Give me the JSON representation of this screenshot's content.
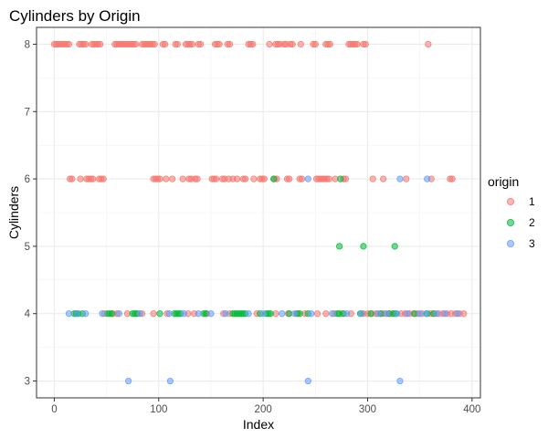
{
  "chart_data": {
    "type": "scatter",
    "title": "Cylinders by Origin",
    "xlabel": "Index",
    "ylabel": "Cylinders",
    "xlim": [
      -17,
      408
    ],
    "ylim": [
      2.75,
      8.25
    ],
    "x_ticks": [
      0,
      100,
      200,
      300,
      400
    ],
    "y_ticks": [
      3,
      4,
      5,
      6,
      7,
      8
    ],
    "grid": true,
    "legend": {
      "title": "origin",
      "placement": "right"
    },
    "series": [
      {
        "name": "1",
        "color": "#F8766D",
        "points": [
          [
            0,
            8
          ],
          [
            2,
            8
          ],
          [
            4,
            8
          ],
          [
            6,
            8
          ],
          [
            8,
            8
          ],
          [
            10,
            8
          ],
          [
            12,
            8
          ],
          [
            14,
            8
          ],
          [
            24,
            8
          ],
          [
            26,
            8
          ],
          [
            28,
            8
          ],
          [
            30,
            8
          ],
          [
            36,
            8
          ],
          [
            38,
            8
          ],
          [
            40,
            8
          ],
          [
            42,
            8
          ],
          [
            44,
            8
          ],
          [
            58,
            8
          ],
          [
            60,
            8
          ],
          [
            62,
            8
          ],
          [
            64,
            8
          ],
          [
            66,
            8
          ],
          [
            68,
            8
          ],
          [
            70,
            8
          ],
          [
            72,
            8
          ],
          [
            74,
            8
          ],
          [
            76,
            8
          ],
          [
            78,
            8
          ],
          [
            84,
            8
          ],
          [
            86,
            8
          ],
          [
            88,
            8
          ],
          [
            90,
            8
          ],
          [
            92,
            8
          ],
          [
            94,
            8
          ],
          [
            96,
            8
          ],
          [
            104,
            8
          ],
          [
            106,
            8
          ],
          [
            116,
            8
          ],
          [
            118,
            8
          ],
          [
            126,
            8
          ],
          [
            128,
            8
          ],
          [
            130,
            8
          ],
          [
            132,
            8
          ],
          [
            138,
            8
          ],
          [
            140,
            8
          ],
          [
            154,
            8
          ],
          [
            156,
            8
          ],
          [
            158,
            8
          ],
          [
            166,
            8
          ],
          [
            168,
            8
          ],
          [
            186,
            8
          ],
          [
            188,
            8
          ],
          [
            190,
            8
          ],
          [
            206,
            8
          ],
          [
            212,
            8
          ],
          [
            214,
            8
          ],
          [
            216,
            8
          ],
          [
            220,
            8
          ],
          [
            222,
            8
          ],
          [
            226,
            8
          ],
          [
            228,
            8
          ],
          [
            236,
            8
          ],
          [
            248,
            8
          ],
          [
            250,
            8
          ],
          [
            260,
            8
          ],
          [
            262,
            8
          ],
          [
            264,
            8
          ],
          [
            282,
            8
          ],
          [
            284,
            8
          ],
          [
            286,
            8
          ],
          [
            288,
            8
          ],
          [
            290,
            8
          ],
          [
            296,
            8
          ],
          [
            298,
            8
          ],
          [
            358,
            8
          ],
          [
            15,
            6
          ],
          [
            17,
            6
          ],
          [
            25,
            6
          ],
          [
            31,
            6
          ],
          [
            33,
            6
          ],
          [
            35,
            6
          ],
          [
            37,
            6
          ],
          [
            43,
            6
          ],
          [
            45,
            6
          ],
          [
            47,
            6
          ],
          [
            95,
            6
          ],
          [
            97,
            6
          ],
          [
            99,
            6
          ],
          [
            101,
            6
          ],
          [
            107,
            6
          ],
          [
            113,
            6
          ],
          [
            123,
            6
          ],
          [
            129,
            6
          ],
          [
            131,
            6
          ],
          [
            135,
            6
          ],
          [
            137,
            6
          ],
          [
            151,
            6
          ],
          [
            153,
            6
          ],
          [
            155,
            6
          ],
          [
            161,
            6
          ],
          [
            163,
            6
          ],
          [
            167,
            6
          ],
          [
            171,
            6
          ],
          [
            175,
            6
          ],
          [
            181,
            6
          ],
          [
            183,
            6
          ],
          [
            191,
            6
          ],
          [
            197,
            6
          ],
          [
            199,
            6
          ],
          [
            201,
            6
          ],
          [
            211,
            6
          ],
          [
            213,
            6
          ],
          [
            223,
            6
          ],
          [
            225,
            6
          ],
          [
            235,
            6
          ],
          [
            237,
            6
          ],
          [
            251,
            6
          ],
          [
            253,
            6
          ],
          [
            255,
            6
          ],
          [
            257,
            6
          ],
          [
            259,
            6
          ],
          [
            261,
            6
          ],
          [
            263,
            6
          ],
          [
            269,
            6
          ],
          [
            277,
            6
          ],
          [
            279,
            6
          ],
          [
            305,
            6
          ],
          [
            315,
            6
          ],
          [
            337,
            6
          ],
          [
            361,
            6
          ],
          [
            379,
            6
          ],
          [
            381,
            6
          ],
          [
            48,
            4
          ],
          [
            56,
            4
          ],
          [
            60,
            4
          ],
          [
            70,
            4
          ],
          [
            80,
            4
          ],
          [
            84,
            4
          ],
          [
            95,
            4
          ],
          [
            108,
            4
          ],
          [
            128,
            4
          ],
          [
            134,
            4
          ],
          [
            146,
            4
          ],
          [
            162,
            4
          ],
          [
            168,
            4
          ],
          [
            194,
            4
          ],
          [
            212,
            4
          ],
          [
            224,
            4
          ],
          [
            232,
            4
          ],
          [
            240,
            4
          ],
          [
            252,
            4
          ],
          [
            260,
            4
          ],
          [
            268,
            4
          ],
          [
            276,
            4
          ],
          [
            284,
            4
          ],
          [
            296,
            4
          ],
          [
            300,
            4
          ],
          [
            304,
            4
          ],
          [
            308,
            4
          ],
          [
            312,
            4
          ],
          [
            316,
            4
          ],
          [
            320,
            4
          ],
          [
            324,
            4
          ],
          [
            332,
            4
          ],
          [
            336,
            4
          ],
          [
            340,
            4
          ],
          [
            344,
            4
          ],
          [
            348,
            4
          ],
          [
            352,
            4
          ],
          [
            360,
            4
          ],
          [
            364,
            4
          ],
          [
            368,
            4
          ],
          [
            372,
            4
          ],
          [
            376,
            4
          ],
          [
            380,
            4
          ],
          [
            384,
            4
          ],
          [
            388,
            4
          ],
          [
            392,
            4
          ]
        ]
      },
      {
        "name": "2",
        "color": "#00BA38",
        "points": [
          [
            210,
            6
          ],
          [
            274,
            6
          ],
          [
            273,
            5
          ],
          [
            296,
            5
          ],
          [
            326,
            5
          ],
          [
            19,
            4
          ],
          [
            21,
            4
          ],
          [
            23,
            4
          ],
          [
            27,
            4
          ],
          [
            51,
            4
          ],
          [
            53,
            4
          ],
          [
            55,
            4
          ],
          [
            75,
            4
          ],
          [
            77,
            4
          ],
          [
            79,
            4
          ],
          [
            101,
            4
          ],
          [
            115,
            4
          ],
          [
            117,
            4
          ],
          [
            119,
            4
          ],
          [
            121,
            4
          ],
          [
            143,
            4
          ],
          [
            145,
            4
          ],
          [
            171,
            4
          ],
          [
            173,
            4
          ],
          [
            175,
            4
          ],
          [
            177,
            4
          ],
          [
            179,
            4
          ],
          [
            181,
            4
          ],
          [
            183,
            4
          ],
          [
            197,
            4
          ],
          [
            203,
            4
          ],
          [
            205,
            4
          ],
          [
            207,
            4
          ],
          [
            225,
            4
          ],
          [
            233,
            4
          ],
          [
            235,
            4
          ],
          [
            243,
            4
          ],
          [
            271,
            4
          ],
          [
            273,
            4
          ],
          [
            277,
            4
          ],
          [
            293,
            4
          ],
          [
            303,
            4
          ],
          [
            313,
            4
          ],
          [
            321,
            4
          ],
          [
            325,
            4
          ],
          [
            327,
            4
          ],
          [
            345,
            4
          ],
          [
            357,
            4
          ],
          [
            363,
            4
          ]
        ]
      },
      {
        "name": "3",
        "color": "#619CFF",
        "points": [
          [
            71,
            3
          ],
          [
            111,
            3
          ],
          [
            243,
            3
          ],
          [
            331,
            3
          ],
          [
            243,
            6
          ],
          [
            331,
            6
          ],
          [
            357,
            6
          ],
          [
            14,
            4
          ],
          [
            22,
            4
          ],
          [
            30,
            4
          ],
          [
            46,
            4
          ],
          [
            62,
            4
          ],
          [
            82,
            4
          ],
          [
            110,
            4
          ],
          [
            124,
            4
          ],
          [
            138,
            4
          ],
          [
            150,
            4
          ],
          [
            164,
            4
          ],
          [
            186,
            4
          ],
          [
            200,
            4
          ],
          [
            218,
            4
          ],
          [
            230,
            4
          ],
          [
            246,
            4
          ],
          [
            266,
            4
          ],
          [
            280,
            4
          ],
          [
            294,
            4
          ],
          [
            310,
            4
          ],
          [
            318,
            4
          ],
          [
            328,
            4
          ],
          [
            338,
            4
          ],
          [
            350,
            4
          ],
          [
            356,
            4
          ],
          [
            366,
            4
          ],
          [
            374,
            4
          ],
          [
            386,
            4
          ]
        ]
      }
    ]
  }
}
